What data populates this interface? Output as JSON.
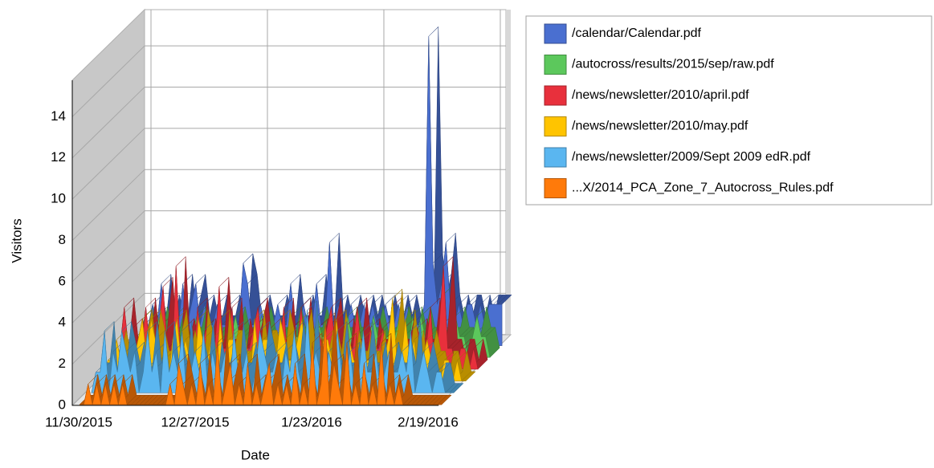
{
  "chart_data": {
    "type": "area3d",
    "x_label": "Date",
    "y_label": "Visitors",
    "x": [
      "11/30/2015",
      "12/1/2015",
      "12/2/2015",
      "12/3/2015",
      "12/4/2015",
      "12/5/2015",
      "12/6/2015",
      "12/7/2015",
      "12/8/2015",
      "12/9/2015",
      "12/10/2015",
      "12/11/2015",
      "12/12/2015",
      "12/13/2015",
      "12/14/2015",
      "12/15/2015",
      "12/16/2015",
      "12/17/2015",
      "12/18/2015",
      "12/19/2015",
      "12/20/2015",
      "12/21/2015",
      "12/22/2015",
      "12/23/2015",
      "12/24/2015",
      "12/25/2015",
      "12/26/2015",
      "12/27/2015",
      "12/28/2015",
      "12/29/2015",
      "12/30/2015",
      "12/31/2015",
      "1/1/2016",
      "1/2/2016",
      "1/3/2016",
      "1/4/2016",
      "1/5/2016",
      "1/6/2016",
      "1/7/2016",
      "1/8/2016",
      "1/9/2016",
      "1/10/2016",
      "1/11/2016",
      "1/12/2016",
      "1/13/2016",
      "1/14/2016",
      "1/15/2016",
      "1/16/2016",
      "1/17/2016",
      "1/18/2016",
      "1/19/2016",
      "1/20/2016",
      "1/21/2016",
      "1/22/2016",
      "1/23/2016",
      "1/24/2016",
      "1/25/2016",
      "1/26/2016",
      "1/27/2016",
      "1/28/2016",
      "1/29/2016",
      "1/30/2016",
      "1/31/2016",
      "2/1/2016",
      "2/2/2016",
      "2/3/2016",
      "2/4/2016",
      "2/5/2016",
      "2/6/2016",
      "2/7/2016",
      "2/8/2016",
      "2/9/2016",
      "2/10/2016",
      "2/11/2016",
      "2/12/2016",
      "2/13/2016",
      "2/14/2016",
      "2/15/2016",
      "2/16/2016",
      "2/17/2016",
      "2/18/2016",
      "2/19/2016",
      "2/20/2016",
      "2/21/2016",
      "2/22/2016"
    ],
    "xticks": [
      "11/30/2015",
      "12/27/2015",
      "1/23/2016",
      "2/19/2016"
    ],
    "ylim": [
      0,
      16
    ],
    "yticks": [
      0,
      2,
      4,
      6,
      8,
      10,
      12,
      14
    ],
    "grid": true,
    "legend": "right",
    "series": [
      {
        "name": "/calendar/Calendar.pdf",
        "color": "#4a6fd0",
        "values": [
          0,
          1,
          1,
          2,
          1,
          3,
          1,
          2,
          1,
          1,
          3,
          1,
          2,
          3,
          1,
          2,
          1,
          1,
          2,
          1,
          1,
          2,
          1,
          1,
          4,
          3,
          1,
          1,
          2,
          1,
          1,
          1,
          2,
          1,
          1,
          3,
          1,
          1,
          2,
          1,
          1,
          3,
          1,
          1,
          5,
          1,
          2,
          1,
          1,
          2,
          1,
          1,
          2,
          1,
          2,
          1,
          1,
          2,
          1,
          1,
          2,
          1,
          2,
          1,
          1,
          1,
          2,
          15,
          4,
          2,
          3,
          5,
          2,
          1,
          2,
          1,
          2,
          2,
          1,
          2,
          1,
          2,
          2,
          2,
          2
        ]
      },
      {
        "name": "/autocross/results/2015/sep/raw.pdf",
        "color": "#5cc85c",
        "values": [
          0,
          0,
          1,
          1,
          2,
          1,
          1,
          2,
          1,
          1,
          1,
          2,
          1,
          0,
          1,
          1,
          2,
          1,
          1,
          0,
          1,
          1,
          0,
          1,
          1,
          2,
          1,
          1,
          0,
          1,
          1,
          2,
          1,
          0,
          1,
          1,
          0,
          1,
          2,
          1,
          1,
          0,
          1,
          1,
          2,
          1,
          1,
          0,
          1,
          1,
          1,
          2,
          1,
          1,
          0,
          1,
          1,
          2,
          1,
          0,
          1,
          1,
          1,
          2,
          1,
          0,
          2,
          1,
          2,
          1,
          1,
          0,
          1,
          3,
          1,
          1,
          2,
          1,
          1,
          0,
          1,
          2,
          1,
          1,
          0
        ]
      },
      {
        "name": "/news/newsletter/2010/april.pdf",
        "color": "#e8303c",
        "values": [
          0,
          1,
          3,
          1,
          2,
          1,
          1,
          3,
          1,
          0,
          2,
          4,
          1,
          0,
          5,
          1,
          2,
          1,
          0,
          3,
          1,
          2,
          0,
          1,
          4,
          1,
          1,
          3,
          0,
          2,
          1,
          1,
          2,
          3,
          1,
          0,
          2,
          1,
          1,
          3,
          0,
          2,
          1,
          3,
          1,
          0,
          1,
          2,
          1,
          2,
          3,
          1,
          0,
          2,
          1,
          1,
          3,
          1,
          0,
          2,
          1,
          1,
          2,
          0,
          3,
          1,
          1,
          2,
          1,
          0,
          2,
          1,
          1,
          3,
          0,
          2,
          5,
          1,
          1,
          0,
          1,
          1,
          0,
          1,
          0
        ]
      },
      {
        "name": "/news/newsletter/2010/may.pdf",
        "color": "#ffc400",
        "values": [
          0,
          1,
          1,
          2,
          1,
          0,
          1,
          1,
          2,
          3,
          1,
          3,
          2,
          1,
          1,
          0,
          2,
          3,
          1,
          2,
          1,
          0,
          3,
          2,
          1,
          2,
          0,
          3,
          1,
          2,
          2,
          1,
          1,
          2,
          0,
          3,
          1,
          2,
          2,
          1,
          1,
          3,
          2,
          1,
          1,
          2,
          3,
          1,
          0,
          2,
          1,
          2,
          2,
          1,
          3,
          1,
          0,
          2,
          1,
          1,
          2,
          1,
          1,
          2,
          0,
          1,
          2,
          4,
          1,
          1,
          3,
          1,
          2,
          0,
          1,
          2,
          1,
          1,
          0,
          1,
          1,
          0,
          1,
          0,
          0
        ]
      },
      {
        "name": "/news/newsletter/2009/Sept 2009 edR.pdf",
        "color": "#5ab6f0",
        "values": [
          0,
          1,
          1,
          3,
          0,
          2,
          1,
          3,
          2,
          1,
          2,
          0,
          1,
          3,
          1,
          2,
          0,
          3,
          1,
          2,
          1,
          3,
          0,
          1,
          2,
          1,
          3,
          0,
          2,
          1,
          1,
          2,
          0,
          3,
          1,
          1,
          2,
          0,
          1,
          3,
          2,
          1,
          1,
          2,
          0,
          2,
          1,
          3,
          1,
          0,
          4,
          1,
          2,
          1,
          0,
          2,
          1,
          3,
          1,
          1,
          2,
          0,
          1,
          3,
          1,
          1,
          2,
          0,
          1,
          2,
          1,
          1,
          2,
          1,
          3,
          0,
          1,
          2,
          1,
          0,
          1,
          1,
          0,
          0,
          0
        ]
      },
      {
        "name": "...X/2014_PCA_Zone_7_Autocross_Rules.pdf",
        "color": "#ff7a0a",
        "values": [
          0,
          0,
          1,
          0,
          1,
          0,
          1,
          0,
          1,
          0,
          1,
          0,
          0,
          0,
          0,
          0,
          0,
          0,
          0,
          0,
          0,
          1,
          0,
          2,
          1,
          0,
          1,
          0,
          2,
          0,
          1,
          0,
          3,
          0,
          1,
          2,
          0,
          1,
          0,
          2,
          0,
          1,
          0,
          1,
          2,
          0,
          1,
          0,
          1,
          0,
          2,
          0,
          1,
          0,
          3,
          0,
          1,
          4,
          0,
          2,
          1,
          0,
          3,
          0,
          1,
          0,
          2,
          0,
          1,
          0,
          3,
          0,
          1,
          0,
          1,
          0,
          0,
          0,
          0,
          0,
          0,
          0,
          0,
          0,
          0
        ]
      }
    ]
  }
}
